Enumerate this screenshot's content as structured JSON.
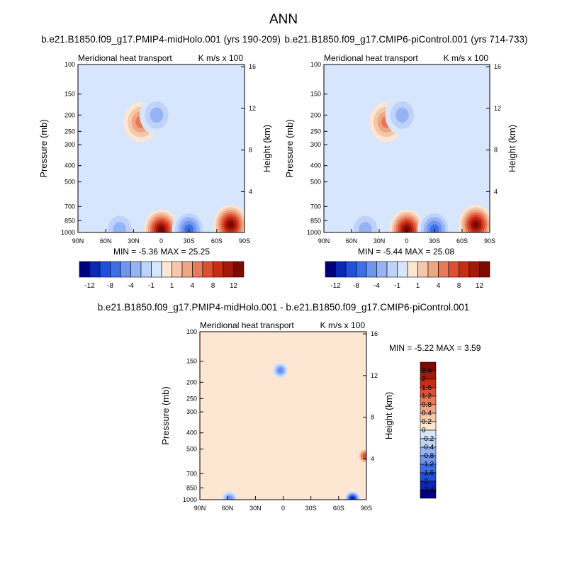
{
  "title": "ANN",
  "panel_titles": [
    "b.e21.B1850.f09_g17.PMIP4-midHolo.001 (yrs 190-209)",
    "b.e21.B1850.f09_g17.CMIP6-piControl.001 (yrs 714-733)",
    "b.e21.B1850.f09_g17.PMIP4-midHolo.001 - b.e21.B1850.f09_g17.CMIP6-piControl.001"
  ],
  "chart_data": [
    {
      "type": "contour",
      "label_left": "Meridional heat transport",
      "label_right": "K m/s x 100",
      "ylabel": "Pressure (mb)",
      "ylabel_right": "Height (km)",
      "x_ticks": [
        "90N",
        "60N",
        "30N",
        "0",
        "30S",
        "60S",
        "90S"
      ],
      "y_ticks": [
        "100",
        "150",
        "200",
        "250",
        "300",
        "400",
        "500",
        "700",
        "850",
        "1000"
      ],
      "y_ticks_right": [
        "16",
        "12",
        "8",
        "4"
      ],
      "stats": {
        "min_label": "MIN =",
        "min": "-5.36",
        "max_label": "MAX =",
        "max": "25.25"
      },
      "colorbar_labels": [
        "-12",
        "-8",
        "-4",
        "-1",
        "1",
        "4",
        "8",
        "12"
      ],
      "colors": [
        "#00007f",
        "#0a28b4",
        "#1e50dc",
        "#3c6ee6",
        "#6e96f0",
        "#96b4f5",
        "#bed2fa",
        "#d7e6fc",
        "#fde6d2",
        "#f5c8aa",
        "#f0a584",
        "#e67b5a",
        "#dc5032",
        "#c82d14",
        "#a5190a",
        "#7d0a00"
      ],
      "features": [
        {
          "shape": "blob",
          "lat": 0,
          "p": 960,
          "value": 12
        },
        {
          "shape": "blob",
          "lat": -30,
          "p": 960,
          "value": -8
        },
        {
          "shape": "blob",
          "lat": -75,
          "p": 900,
          "value": 12
        },
        {
          "shape": "blob",
          "lat": 45,
          "p": 960,
          "value": -4
        },
        {
          "shape": "blob",
          "lat": 22,
          "p": 220,
          "value": 4
        },
        {
          "shape": "blob",
          "lat": 5,
          "p": 200,
          "value": -4
        }
      ]
    },
    {
      "type": "contour",
      "label_left": "Meridional heat transport",
      "label_right": "K m/s x 100",
      "ylabel": "Pressure (mb)",
      "ylabel_right": "Height (km)",
      "x_ticks": [
        "90N",
        "60N",
        "30N",
        "0",
        "30S",
        "60S",
        "90S"
      ],
      "y_ticks": [
        "100",
        "150",
        "200",
        "250",
        "300",
        "400",
        "500",
        "700",
        "850",
        "1000"
      ],
      "y_ticks_right": [
        "16",
        "12",
        "8",
        "4"
      ],
      "stats": {
        "min_label": "MIN =",
        "min": "-5.44",
        "max_label": "MAX =",
        "max": "25.08"
      },
      "colorbar_labels": [
        "-12",
        "-8",
        "-4",
        "-1",
        "1",
        "4",
        "8",
        "12"
      ],
      "colors": [
        "#00007f",
        "#0a28b4",
        "#1e50dc",
        "#3c6ee6",
        "#6e96f0",
        "#96b4f5",
        "#bed2fa",
        "#d7e6fc",
        "#fde6d2",
        "#f5c8aa",
        "#f0a584",
        "#e67b5a",
        "#dc5032",
        "#c82d14",
        "#a5190a",
        "#7d0a00"
      ],
      "features": [
        {
          "shape": "blob",
          "lat": 0,
          "p": 960,
          "value": 12
        },
        {
          "shape": "blob",
          "lat": -30,
          "p": 960,
          "value": -8
        },
        {
          "shape": "blob",
          "lat": -75,
          "p": 900,
          "value": 12
        },
        {
          "shape": "blob",
          "lat": 45,
          "p": 960,
          "value": -4
        },
        {
          "shape": "blob",
          "lat": 22,
          "p": 220,
          "value": 4
        },
        {
          "shape": "blob",
          "lat": 5,
          "p": 200,
          "value": -4
        }
      ]
    },
    {
      "type": "contour",
      "label_left": "Meridional heat transport",
      "label_right": "K m/s x 100",
      "ylabel": "Pressure (mb)",
      "ylabel_right": "Height (km)",
      "x_ticks": [
        "90N",
        "60N",
        "30N",
        "0",
        "30S",
        "60S",
        "90S"
      ],
      "y_ticks": [
        "100",
        "150",
        "200",
        "250",
        "300",
        "400",
        "500",
        "700",
        "850",
        "1000"
      ],
      "y_ticks_right": [
        "16",
        "12",
        "8",
        "4"
      ],
      "stats": {
        "min_label": "MIN =",
        "min": "-5.22",
        "max_label": "MAX =",
        "max": "3.59"
      },
      "colorbar_labels": [
        "2.4",
        "2",
        "1.6",
        "1.2",
        "0.8",
        "0.4",
        "0.2",
        "0",
        "-0.2",
        "-0.4",
        "-0.8",
        "-1.2",
        "-1.6",
        "-2",
        "-2.4"
      ],
      "colors": [
        "#7d0a00",
        "#a5190a",
        "#c82d14",
        "#dc5032",
        "#e67b5a",
        "#f0a584",
        "#f5c8aa",
        "#fde6d2",
        "#d7e6fc",
        "#bed2fa",
        "#96b4f5",
        "#6e96f0",
        "#3c6ee6",
        "#1e50dc",
        "#0a28b4",
        "#00007f"
      ],
      "features": [
        {
          "shape": "blob",
          "lat": 3,
          "p": 170,
          "value": -1.2
        },
        {
          "shape": "blob",
          "lat": -75,
          "p": 990,
          "value": -2.4
        },
        {
          "shape": "blob",
          "lat": 58,
          "p": 990,
          "value": -1.2
        },
        {
          "shape": "blob",
          "lat": -89,
          "p": 550,
          "value": 1.2
        }
      ]
    }
  ]
}
